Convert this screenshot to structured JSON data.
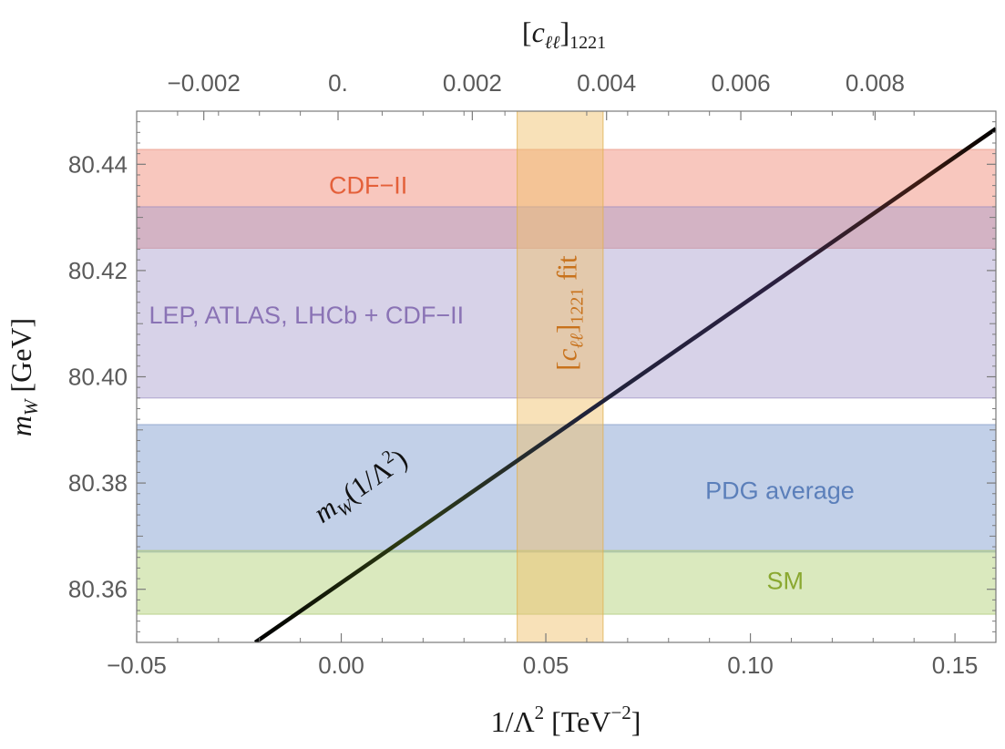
{
  "chart_data": {
    "type": "line",
    "xlabel": {
      "main": "1/Λ",
      "sup": "2",
      "unit_open": " [TeV",
      "unit_sup": "−2",
      "unit_close": "]"
    },
    "ylabel": {
      "sym": "m",
      "sub": "W",
      "unit": " [GeV]"
    },
    "top_xlabel": {
      "open": "[",
      "sym": "c",
      "sub1": "ℓℓ",
      "close": "]",
      "sub2": "1221"
    },
    "xlim": [
      -0.05,
      0.16
    ],
    "ylim": [
      80.35,
      80.45
    ],
    "top_xlim": [
      -0.003,
      0.0098
    ],
    "x_ticks": [
      {
        "v": -0.05,
        "label": "−0.05"
      },
      {
        "v": 0.0,
        "label": "0.00"
      },
      {
        "v": 0.05,
        "label": "0.05"
      },
      {
        "v": 0.1,
        "label": "0.10"
      },
      {
        "v": 0.15,
        "label": "0.15"
      }
    ],
    "y_ticks": [
      {
        "v": 80.36,
        "label": "80.36"
      },
      {
        "v": 80.38,
        "label": "80.38"
      },
      {
        "v": 80.4,
        "label": "80.40"
      },
      {
        "v": 80.42,
        "label": "80.42"
      },
      {
        "v": 80.44,
        "label": "80.44"
      }
    ],
    "top_ticks": [
      {
        "v": -0.002,
        "label": "−0.002"
      },
      {
        "v": 0.0,
        "label": "0."
      },
      {
        "v": 0.002,
        "label": "0.002"
      },
      {
        "v": 0.004,
        "label": "0.004"
      },
      {
        "v": 0.006,
        "label": "0.006"
      },
      {
        "v": 0.008,
        "label": "0.008"
      }
    ],
    "bands": [
      {
        "name": "cdf",
        "label": "CDF−II",
        "y": [
          80.4242,
          80.4428
        ],
        "fill": "#f39f8f",
        "stroke": "#e6907f",
        "opacity": 0.58,
        "text_color": "#e4603a",
        "label_x": -0.003,
        "label_y": 80.4345
      },
      {
        "name": "lep-combined",
        "label": "LEP, ATLAS, LHCb + CDF−II",
        "y": [
          80.396,
          80.432
        ],
        "fill": "#a79ccb",
        "stroke": "#978cc0",
        "opacity": 0.45,
        "text_color": "#8a73b5",
        "label_x": -0.047,
        "label_y": 80.41
      },
      {
        "name": "pdg",
        "label": "PDG average",
        "y": [
          80.367,
          80.391
        ],
        "fill": "#8aa4d2",
        "stroke": "#7a94c2",
        "opacity": 0.52,
        "text_color": "#5b7fba",
        "label_x": 0.089,
        "label_y": 80.377
      },
      {
        "name": "sm",
        "label": "SM",
        "y": [
          80.3553,
          80.3673
        ],
        "fill": "#b9d482",
        "stroke": "#a8c470",
        "opacity": 0.52,
        "text_color": "#8aa830",
        "label_x": 0.104,
        "label_y": 80.36
      }
    ],
    "vband": {
      "name": "cll-fit",
      "x": [
        0.043,
        0.064
      ],
      "fill": "#f0c06a",
      "stroke": "#e0b050",
      "opacity": 0.48,
      "text_color": "#c8721c",
      "label": {
        "open": "[",
        "sym": "c",
        "sub1": "ℓℓ",
        "close": "]",
        "sub2": "1221",
        "tail": " fit"
      },
      "label_x": 0.0575,
      "label_y": 80.412
    },
    "line": {
      "name": "mw-line",
      "x": [
        -0.021,
        0.16
      ],
      "y": [
        80.35,
        80.4467
      ],
      "label": {
        "sym": "m",
        "sub": "W",
        "arg": "(1/Λ",
        "sup": "2",
        "close": ")"
      },
      "label_x": 0.006,
      "label_y": 80.378
    }
  }
}
